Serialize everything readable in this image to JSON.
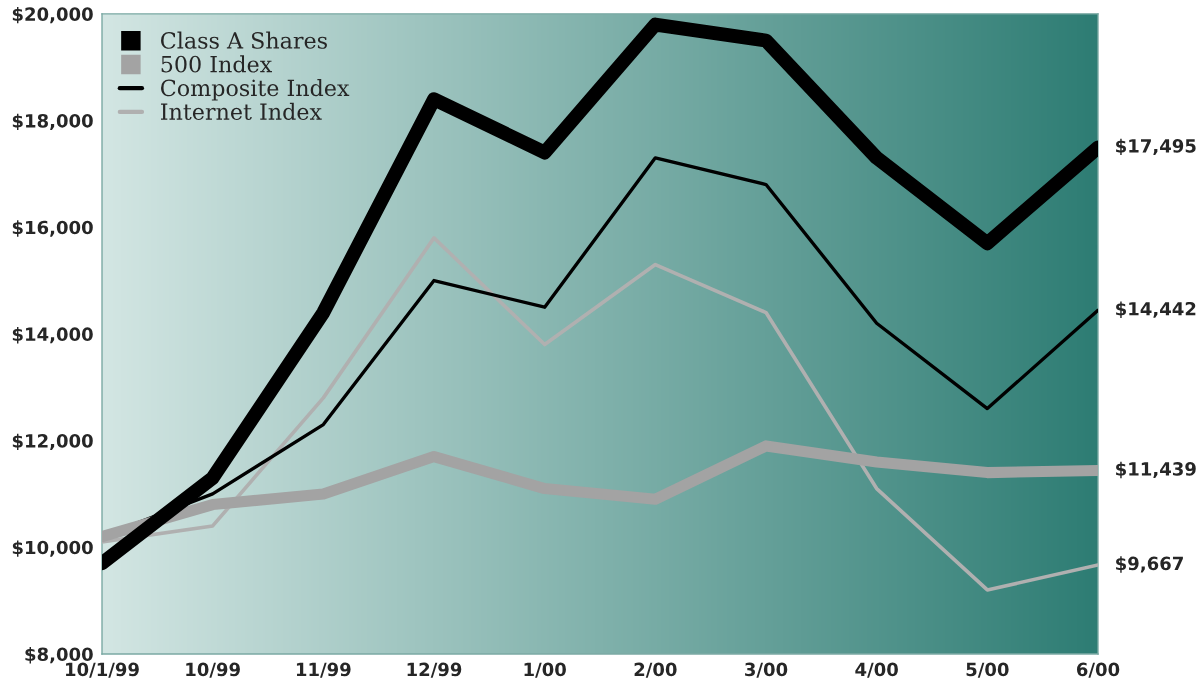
{
  "chart_data": {
    "type": "line",
    "categories": [
      "10/1/99",
      "10/99",
      "11/99",
      "12/99",
      "1/00",
      "2/00",
      "3/00",
      "4/00",
      "5/00",
      "6/00"
    ],
    "series": [
      {
        "name": "Class A Shares",
        "color": "#000000",
        "values": [
          9700,
          11300,
          14400,
          18400,
          17400,
          19800,
          19500,
          17300,
          15700,
          17495
        ],
        "value_labels": [
          null,
          null,
          null,
          null,
          null,
          null,
          null,
          null,
          null,
          "$17,495"
        ]
      },
      {
        "name": "500 Index",
        "color": "#a3a3a3",
        "values": [
          10200,
          10800,
          11000,
          11700,
          11100,
          10900,
          11900,
          11600,
          11400,
          11439
        ],
        "value_labels": [
          null,
          null,
          null,
          null,
          null,
          null,
          null,
          null,
          null,
          "$11,439"
        ]
      },
      {
        "name": "Composite Index",
        "color": "#000000",
        "values": [
          10200,
          11000,
          12300,
          15000,
          14500,
          17300,
          16800,
          14200,
          12600,
          14442
        ],
        "value_labels": [
          null,
          null,
          null,
          null,
          null,
          null,
          null,
          null,
          null,
          "$14,442"
        ]
      },
      {
        "name": "Internet Index",
        "color": "#b0b0b0",
        "values": [
          10100,
          10400,
          12800,
          15800,
          13800,
          15300,
          14400,
          11100,
          9200,
          9667
        ],
        "value_labels": [
          null,
          null,
          null,
          null,
          null,
          null,
          null,
          null,
          null,
          "$9,667"
        ]
      }
    ],
    "ylim": [
      8000,
      20000
    ],
    "yticks": [
      {
        "value": 8000,
        "label": "$8,000"
      },
      {
        "value": 10000,
        "label": "$10,000"
      },
      {
        "value": 12000,
        "label": "$12,000"
      },
      {
        "value": 14000,
        "label": "$14,000"
      },
      {
        "value": 16000,
        "label": "$16,000"
      },
      {
        "value": 18000,
        "label": "$18,000"
      },
      {
        "value": 20000,
        "label": "$20,000"
      }
    ],
    "grid": false,
    "legend": "top left",
    "marker": "none",
    "line_style": "solid"
  }
}
